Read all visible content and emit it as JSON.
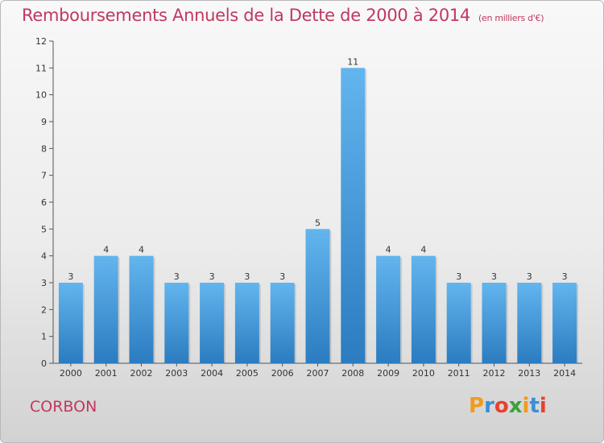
{
  "header": {
    "title": "Remboursements Annuels de la Dette de 2000 à 2014",
    "unit": "(en milliers d'€)"
  },
  "commune": "CORBON",
  "logo": {
    "letters": [
      "P",
      "r",
      "o",
      "x",
      "i",
      "t",
      "i"
    ],
    "colors": [
      "#f29a1c",
      "#3a8fd8",
      "#e8412c",
      "#3aa13a",
      "#f29a1c",
      "#3a8fd8",
      "#e8412c"
    ]
  },
  "colors": {
    "bar_light": "#63b5ee",
    "bar_dark": "#2b7cc0",
    "text_accent": "#c0395f"
  },
  "chart_data": {
    "type": "bar",
    "categories": [
      "2000",
      "2001",
      "2002",
      "2003",
      "2004",
      "2005",
      "2006",
      "2007",
      "2008",
      "2009",
      "2010",
      "2011",
      "2012",
      "2013",
      "2014"
    ],
    "values": [
      3,
      4,
      4,
      3,
      3,
      3,
      3,
      5,
      11,
      4,
      4,
      3,
      3,
      3,
      3
    ],
    "ylim": [
      0,
      12
    ],
    "yticks": [
      0,
      1,
      2,
      3,
      4,
      5,
      6,
      7,
      8,
      9,
      10,
      11,
      12
    ],
    "grid": false
  }
}
